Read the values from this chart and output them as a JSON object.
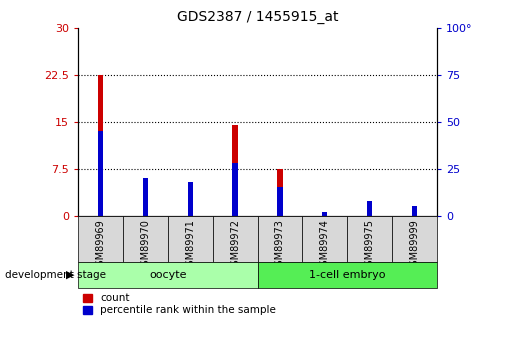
{
  "title": "GDS2387 / 1455915_at",
  "samples": [
    "GSM89969",
    "GSM89970",
    "GSM89971",
    "GSM89972",
    "GSM89973",
    "GSM89974",
    "GSM89975",
    "GSM89999"
  ],
  "count": [
    22.5,
    3.0,
    2.5,
    14.5,
    7.5,
    0.05,
    1.5,
    1.0
  ],
  "percentile": [
    45,
    20,
    18,
    28,
    15,
    2,
    8,
    5
  ],
  "left_ylim": [
    0,
    30
  ],
  "right_ylim": [
    0,
    100
  ],
  "left_yticks": [
    0,
    7.5,
    15,
    22.5,
    30
  ],
  "right_yticks": [
    0,
    25,
    50,
    75,
    100
  ],
  "left_yticklabels": [
    "0",
    "7.5",
    "15",
    "22.5",
    "30"
  ],
  "right_yticklabels": [
    "0",
    "25",
    "50",
    "75",
    "100°"
  ],
  "count_color": "#CC0000",
  "percentile_color": "#0000CC",
  "bg_color": "#D8D8D8",
  "plot_bg": "#FFFFFF",
  "oocyte_color": "#AAFFAA",
  "embryo_color": "#55EE55",
  "group_label": "development stage",
  "legend_count": "count",
  "legend_percentile": "percentile rank within the sample",
  "bar_width": 0.12
}
